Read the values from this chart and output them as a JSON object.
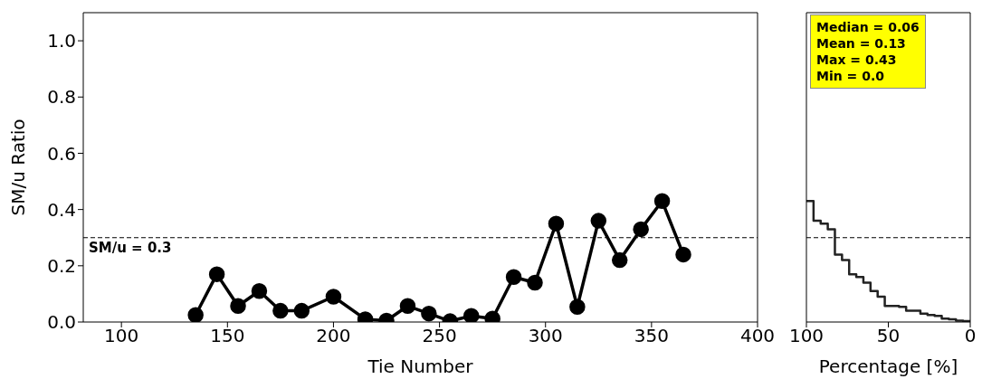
{
  "chart_data": [
    {
      "type": "line",
      "xlabel": "Tie Number",
      "ylabel": "SM/u Ratio",
      "marker": "circle",
      "line_style": "solid",
      "x": [
        135,
        145,
        155,
        165,
        175,
        185,
        200,
        215,
        225,
        235,
        245,
        255,
        265,
        275,
        285,
        295,
        305,
        315,
        325,
        335,
        345,
        355,
        365
      ],
      "series": [
        {
          "color": "#000000",
          "values": [
            0.025,
            0.17,
            0.057,
            0.11,
            0.04,
            0.04,
            0.09,
            0.01,
            0.005,
            0.057,
            0.03,
            0.003,
            0.022,
            0.012,
            0.16,
            0.14,
            0.35,
            0.054,
            0.36,
            0.22,
            0.33,
            0.43,
            0.24
          ]
        }
      ],
      "xlim": [
        82,
        400
      ],
      "xticks": [
        100,
        150,
        200,
        250,
        300,
        350,
        400
      ],
      "ylim": [
        0,
        1.1
      ],
      "yticks": [
        {
          "value": 0,
          "label": "0.0"
        },
        {
          "value": 0.2,
          "label": "0.2"
        },
        {
          "value": 0.4,
          "label": "0.4"
        },
        {
          "value": 0.6,
          "label": "0.6"
        },
        {
          "value": 0.8,
          "label": "0.8"
        },
        {
          "value": 1.0,
          "label": "1.0"
        }
      ],
      "ref_lines": [
        {
          "axis": "y",
          "value": 0.3,
          "label": "SM/u = 0.3",
          "color": "#000000",
          "line_style": "dashed"
        }
      ],
      "grid": false,
      "legend": false
    },
    {
      "type": "step",
      "xlabel": "Percentage [%]",
      "marker": "none",
      "line_style": "solid",
      "x": [
        100,
        95.65,
        91.3,
        86.96,
        82.61,
        78.26,
        73.91,
        69.57,
        65.22,
        60.87,
        56.52,
        52.17,
        47.83,
        43.48,
        39.13,
        34.78,
        30.43,
        26.09,
        21.74,
        17.39,
        13.04,
        8.7,
        4.35,
        0
      ],
      "series": [
        {
          "color": "#222222",
          "values": [
            0.43,
            0.36,
            0.35,
            0.33,
            0.24,
            0.22,
            0.17,
            0.16,
            0.14,
            0.11,
            0.09,
            0.057,
            0.057,
            0.054,
            0.04,
            0.04,
            0.03,
            0.025,
            0.022,
            0.012,
            0.01,
            0.005,
            0.003,
            0.003
          ]
        }
      ],
      "xlim": [
        100,
        0
      ],
      "xticks": [
        100,
        50,
        0
      ],
      "ylim": [
        0,
        1.1
      ],
      "tick_labels": "x",
      "ref_lines": [
        {
          "axis": "y",
          "value": 0.3,
          "label": null,
          "color": "#000000",
          "line_style": "dashed"
        }
      ],
      "annotations": [
        "Median = 0.06",
        "Mean = 0.13",
        "Max = 0.43",
        "Min = 0.0"
      ],
      "grid": false,
      "legend": false
    }
  ]
}
